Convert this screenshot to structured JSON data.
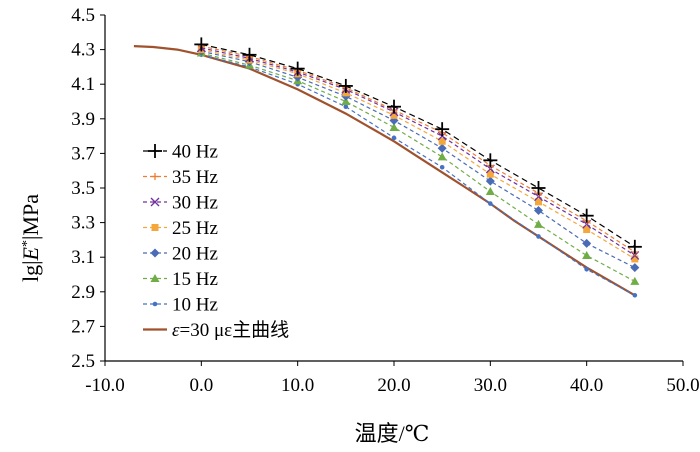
{
  "chart_data": {
    "type": "line",
    "title": "",
    "xlabel": "温度/℃",
    "ylabel": {
      "prefix": "lg|",
      "var": "E",
      "sup": "*",
      "suffix": "|MPa"
    },
    "xlim": [
      -10,
      50
    ],
    "ylim": [
      2.5,
      4.5
    ],
    "xticks": [
      -10,
      0,
      10,
      20,
      30,
      40,
      50
    ],
    "xtick_labels": [
      "-10.0",
      "0.0",
      "10.0",
      "20.0",
      "30.0",
      "40.0",
      "50.0"
    ],
    "yticks": [
      2.5,
      2.7,
      2.9,
      3.1,
      3.3,
      3.5,
      3.7,
      3.9,
      4.1,
      4.3,
      4.5
    ],
    "ytick_labels": [
      "2.5",
      "2.7",
      "2.9",
      "3.1",
      "3.3",
      "3.5",
      "3.7",
      "3.9",
      "4.1",
      "4.3",
      "4.5"
    ],
    "grid": false,
    "legend_position": "left",
    "x": [
      0,
      5,
      10,
      15,
      20,
      25,
      30,
      35,
      40,
      45
    ],
    "series": [
      {
        "name": "40 Hz",
        "color": "#000000",
        "marker": "plus",
        "dash": "6,4",
        "values": [
          4.33,
          4.27,
          4.19,
          4.09,
          3.97,
          3.84,
          3.66,
          3.5,
          3.34,
          3.16
        ]
      },
      {
        "name": "35 Hz",
        "color": "#ED7D31",
        "marker": "smallplus",
        "dash": "4,3",
        "values": [
          4.32,
          4.26,
          4.18,
          4.08,
          3.95,
          3.82,
          3.63,
          3.47,
          3.31,
          3.13
        ]
      },
      {
        "name": "30 Hz",
        "color": "#7030A0",
        "marker": "cross",
        "dash": "4,3",
        "values": [
          4.31,
          4.25,
          4.17,
          4.07,
          3.94,
          3.8,
          3.61,
          3.45,
          3.29,
          3.11
        ]
      },
      {
        "name": "25 Hz",
        "color": "#F4A83C",
        "marker": "square",
        "dash": "4,3",
        "values": [
          4.3,
          4.24,
          4.16,
          4.05,
          3.92,
          3.77,
          3.58,
          3.42,
          3.26,
          3.09
        ]
      },
      {
        "name": "20 Hz",
        "color": "#4A6BB5",
        "marker": "diamond",
        "dash": "4,3",
        "values": [
          4.29,
          4.23,
          4.14,
          4.03,
          3.89,
          3.73,
          3.54,
          3.37,
          3.18,
          3.04
        ]
      },
      {
        "name": "15 Hz",
        "color": "#70AD47",
        "marker": "triangle",
        "dash": "4,3",
        "values": [
          4.28,
          4.21,
          4.12,
          4.0,
          3.85,
          3.68,
          3.48,
          3.29,
          3.11,
          2.96
        ]
      },
      {
        "name": "10 Hz",
        "color": "#4472C4",
        "marker": "dot",
        "dash": "4,3",
        "values": [
          4.27,
          4.2,
          4.1,
          3.97,
          3.79,
          3.62,
          3.41,
          3.22,
          3.03,
          2.88
        ]
      },
      {
        "name": "ε=30 με主曲线",
        "color": "#A0522D",
        "marker": "none",
        "dash": "",
        "x": [
          -7,
          -5,
          -2.5,
          0,
          2.5,
          5,
          7.5,
          10,
          12.5,
          15,
          17.5,
          20,
          22.5,
          25,
          27.5,
          30,
          32.5,
          35,
          37.5,
          40,
          42.5,
          45
        ],
        "values": [
          4.32,
          4.315,
          4.3,
          4.27,
          4.23,
          4.19,
          4.13,
          4.07,
          4.0,
          3.93,
          3.85,
          3.77,
          3.68,
          3.59,
          3.5,
          3.41,
          3.31,
          3.22,
          3.13,
          3.04,
          2.96,
          2.88
        ]
      }
    ]
  }
}
